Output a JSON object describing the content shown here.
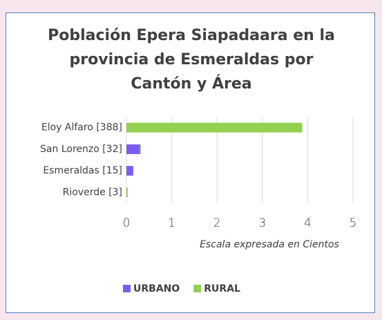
{
  "chart_data": {
    "type": "bar",
    "orientation": "horizontal",
    "stacked": true,
    "title": "Población Epera Siapadaara en la provincia de Esmeraldas por Cantón y Área",
    "x_axis_label": "Escala expresada en Cientos",
    "categories": [
      "Eloy Alfaro [388]",
      "San Lorenzo [32]",
      "Esmeraldas [15]",
      "Rioverde [3]"
    ],
    "series": [
      {
        "name": "URBANO",
        "color": "#7b5cf5",
        "values": [
          0,
          0.3,
          0.15,
          0
        ]
      },
      {
        "name": "RURAL",
        "color": "#92d050",
        "values": [
          3.88,
          0.02,
          0,
          0.03
        ]
      }
    ],
    "xlim": [
      0,
      5
    ],
    "xticks": [
      0,
      1,
      2,
      3,
      4,
      5
    ],
    "grid": true,
    "legend": "bottom"
  }
}
